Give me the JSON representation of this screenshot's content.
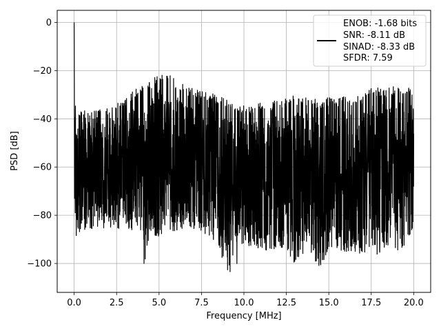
{
  "chart_data": {
    "type": "line",
    "title": "",
    "xlabel": "Frequency [MHz]",
    "ylabel": "PSD [dB]",
    "xlim": [
      -1.0,
      21.0
    ],
    "ylim": [
      -112,
      5
    ],
    "xticks": [
      0.0,
      2.5,
      5.0,
      7.5,
      10.0,
      12.5,
      15.0,
      17.5,
      20.0
    ],
    "xtick_labels": [
      "0.0",
      "2.5",
      "5.0",
      "7.5",
      "10.0",
      "12.5",
      "15.0",
      "17.5",
      "20.0"
    ],
    "yticks": [
      0,
      -20,
      -40,
      -60,
      -80,
      -100
    ],
    "ytick_labels": [
      "0",
      "−20",
      "−40",
      "−60",
      "−80",
      "−100"
    ],
    "grid": true,
    "legend_position": "top-right",
    "line_color": "#000000",
    "series": [
      {
        "name": "ENOB: -1.68 bits\nSNR: -8.11 dB\nSINAD: -8.33 dB\nSFDR: 7.59",
        "legend_lines": [
          "ENOB: -1.68 bits",
          "SNR: -8.11 dB",
          "SINAD: -8.33 dB",
          "SFDR: 7.59"
        ],
        "x": [
          0.0,
          0.02,
          0.05,
          0.1,
          0.2,
          0.5,
          1.0,
          1.5,
          2.0,
          2.5,
          3.0,
          3.5,
          4.0,
          4.1,
          4.5,
          5.0,
          5.5,
          6.0,
          6.5,
          7.0,
          7.5,
          8.0,
          8.7,
          9.2,
          10.0,
          10.5,
          11.0,
          11.5,
          12.0,
          12.5,
          13.0,
          13.5,
          14.0,
          14.5,
          15.0,
          15.5,
          16.0,
          16.5,
          17.0,
          17.5,
          18.0,
          18.5,
          19.0,
          19.5,
          20.0
        ],
        "upper": [
          0,
          -25,
          -30,
          -35,
          -36,
          -36,
          -36,
          -36,
          -35,
          -33,
          -32,
          -28,
          -26,
          -27,
          -24,
          -21,
          -21,
          -24,
          -26,
          -27,
          -28,
          -29,
          -31,
          -32,
          -34,
          -34,
          -33,
          -33,
          -32,
          -31,
          -30,
          -31,
          -31,
          -32,
          -31,
          -31,
          -30,
          -31,
          -30,
          -27,
          -27,
          -27,
          -26,
          -27,
          -26
        ],
        "lower": [
          -70,
          -78,
          -82,
          -90,
          -92,
          -87,
          -86,
          -85,
          -86,
          -86,
          -85,
          -87,
          -86,
          -102,
          -88,
          -89,
          -88,
          -87,
          -86,
          -87,
          -88,
          -89,
          -98,
          -106,
          -95,
          -97,
          -96,
          -95,
          -94,
          -95,
          -101,
          -96,
          -97,
          -103,
          -95,
          -94,
          -96,
          -95,
          -97,
          -97,
          -96,
          -94,
          -95,
          -93,
          -86
        ]
      }
    ]
  }
}
